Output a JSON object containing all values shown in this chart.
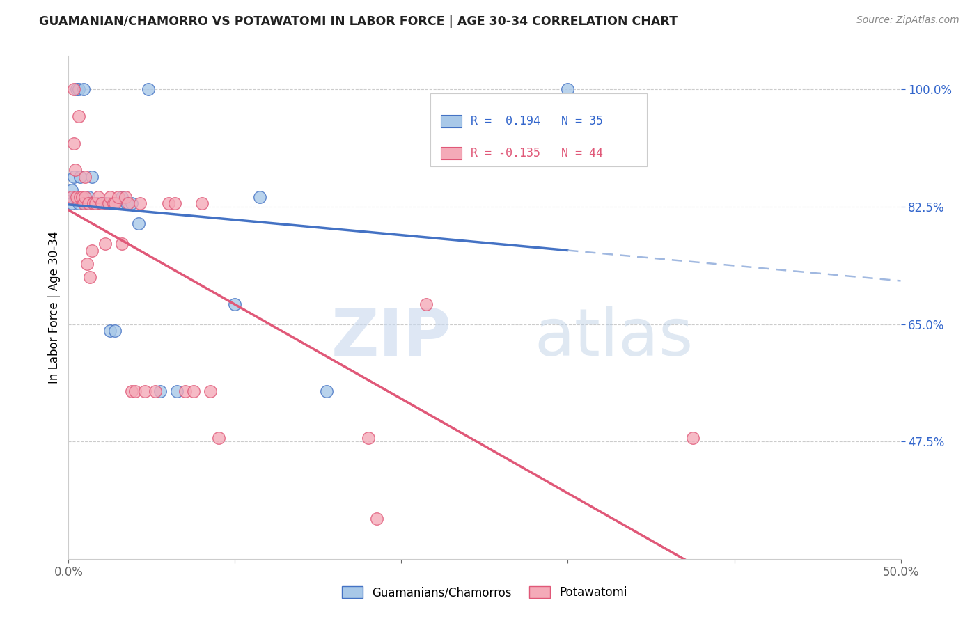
{
  "title": "GUAMANIAN/CHAMORRO VS POTAWATOMI IN LABOR FORCE | AGE 30-34 CORRELATION CHART",
  "source": "Source: ZipAtlas.com",
  "ylabel": "In Labor Force | Age 30-34",
  "xlim": [
    0.0,
    0.5
  ],
  "ylim": [
    0.3,
    1.05
  ],
  "xticks": [
    0.0,
    0.1,
    0.2,
    0.3,
    0.4,
    0.5
  ],
  "xticklabels": [
    "0.0%",
    "",
    "",
    "",
    "",
    "50.0%"
  ],
  "yticks": [
    0.475,
    0.65,
    0.825,
    1.0
  ],
  "yticklabels": [
    "47.5%",
    "65.0%",
    "82.5%",
    "100.0%"
  ],
  "R_blue": 0.194,
  "N_blue": 35,
  "R_pink": -0.135,
  "N_pink": 44,
  "blue_color": "#a8c8e8",
  "pink_color": "#f4aab8",
  "trendline_blue": "#4472c4",
  "trendline_pink": "#e05878",
  "trendline_dashed_color": "#a0b8e0",
  "watermark_zip": "ZIP",
  "watermark_atlas": "atlas",
  "legend_label_blue": "Guamanians/Chamorros",
  "legend_label_pink": "Potawatomi",
  "blue_x": [
    0.002,
    0.002,
    0.003,
    0.004,
    0.005,
    0.006,
    0.006,
    0.007,
    0.008,
    0.009,
    0.01,
    0.01,
    0.011,
    0.012,
    0.013,
    0.014,
    0.015,
    0.016,
    0.018,
    0.02,
    0.022,
    0.025,
    0.028,
    0.03,
    0.032,
    0.035,
    0.038,
    0.042,
    0.048,
    0.055,
    0.065,
    0.1,
    0.115,
    0.155,
    0.3
  ],
  "blue_y": [
    0.83,
    0.85,
    0.87,
    0.84,
    1.0,
    1.0,
    0.83,
    0.87,
    0.84,
    1.0,
    0.83,
    0.84,
    0.83,
    0.84,
    0.83,
    0.87,
    0.83,
    0.83,
    0.83,
    0.83,
    0.83,
    0.64,
    0.64,
    0.83,
    0.84,
    0.83,
    0.83,
    0.8,
    1.0,
    0.55,
    0.55,
    0.68,
    0.84,
    0.55,
    1.0
  ],
  "pink_x": [
    0.002,
    0.003,
    0.003,
    0.004,
    0.005,
    0.006,
    0.007,
    0.008,
    0.009,
    0.01,
    0.01,
    0.011,
    0.012,
    0.013,
    0.014,
    0.015,
    0.016,
    0.018,
    0.02,
    0.022,
    0.024,
    0.025,
    0.027,
    0.028,
    0.03,
    0.032,
    0.034,
    0.036,
    0.038,
    0.04,
    0.043,
    0.046,
    0.052,
    0.06,
    0.064,
    0.07,
    0.075,
    0.08,
    0.085,
    0.09,
    0.18,
    0.185,
    0.215,
    0.375
  ],
  "pink_y": [
    0.84,
    1.0,
    0.92,
    0.88,
    0.84,
    0.96,
    0.84,
    0.84,
    0.83,
    0.87,
    0.84,
    0.74,
    0.83,
    0.72,
    0.76,
    0.83,
    0.83,
    0.84,
    0.83,
    0.77,
    0.83,
    0.84,
    0.83,
    0.83,
    0.84,
    0.77,
    0.84,
    0.83,
    0.55,
    0.55,
    0.83,
    0.55,
    0.55,
    0.83,
    0.83,
    0.55,
    0.55,
    0.83,
    0.55,
    0.48,
    0.48,
    0.36,
    0.68,
    0.48
  ]
}
